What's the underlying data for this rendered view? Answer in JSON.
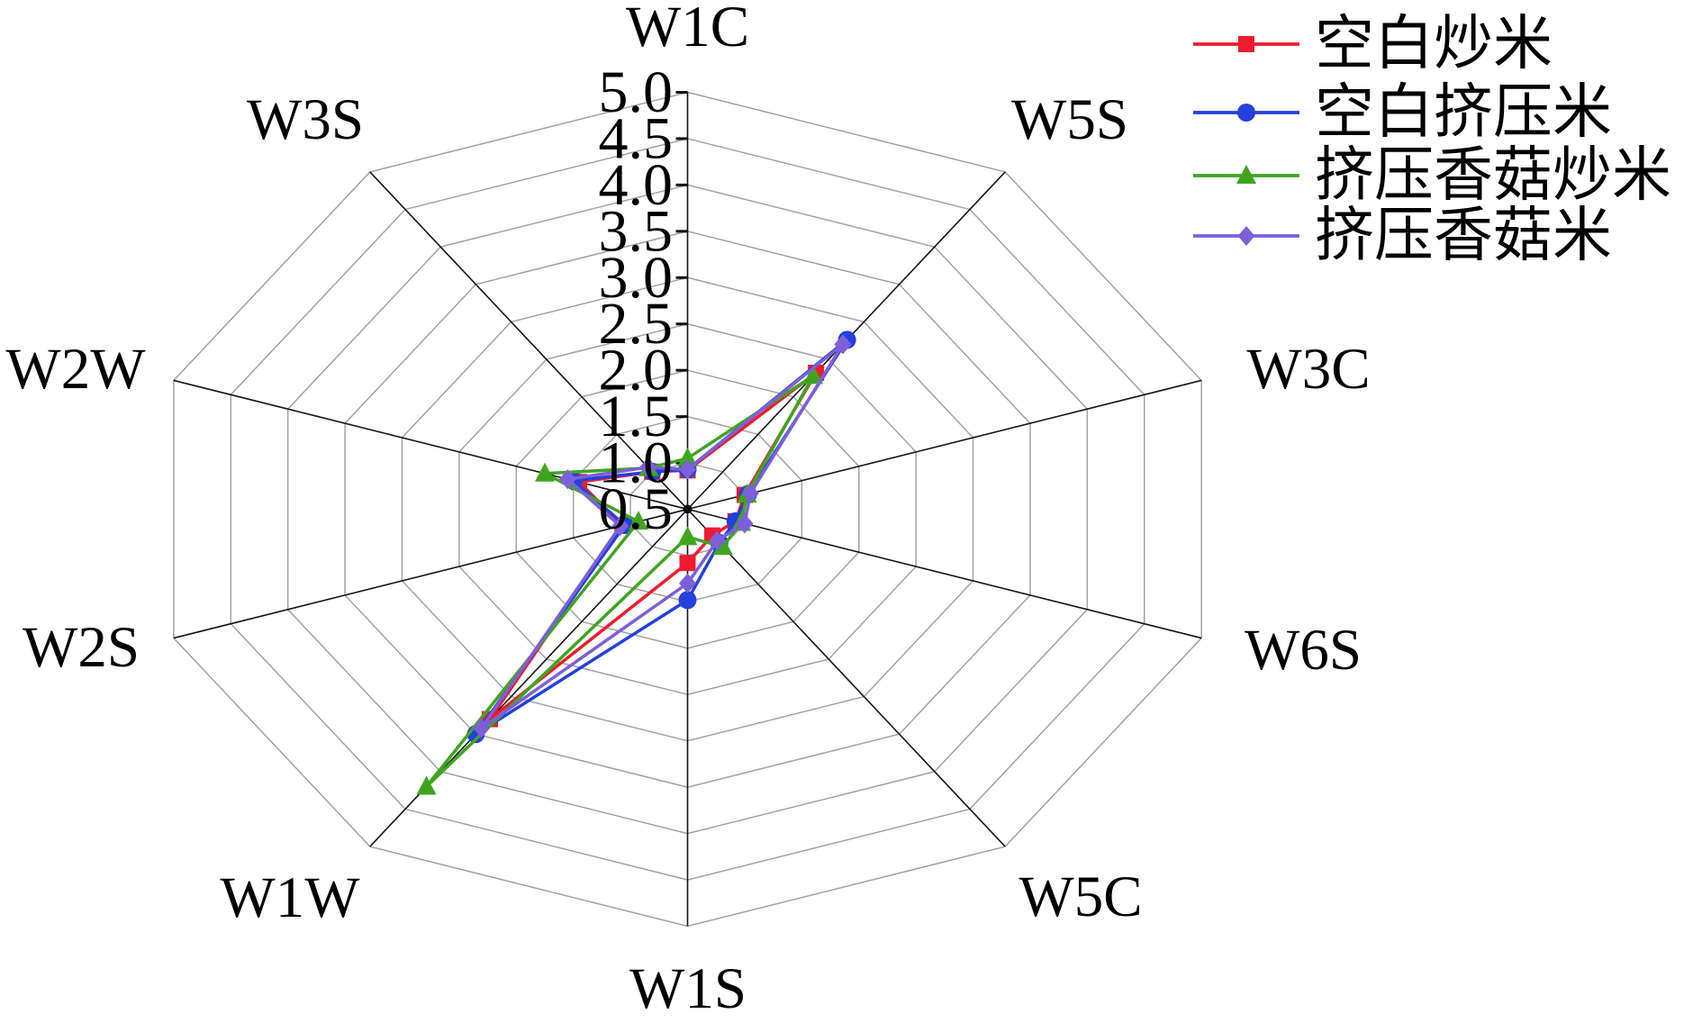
{
  "chart_data": {
    "type": "radar",
    "axes": [
      "W1C",
      "W5S",
      "W3C",
      "W6S",
      "W5C",
      "W1S",
      "W1W",
      "W2S",
      "W2W",
      "W3S"
    ],
    "rmin": 0.5,
    "rmax": 5.0,
    "tick_step": 0.5,
    "tick_labels": [
      "0.5",
      "1.0",
      "1.5",
      "2.0",
      "2.5",
      "3.0",
      "3.5",
      "4.0",
      "4.5",
      "5.0"
    ],
    "grid_color": "#a2a2a2",
    "spoke_color": "#15151f",
    "series": [
      {
        "name": "空白炒米",
        "color": "#ee1c2e",
        "marker": "square",
        "values": [
          0.92,
          2.32,
          1.0,
          0.92,
          0.85,
          1.08,
          3.3,
          1.07,
          1.45,
          1.0
        ]
      },
      {
        "name": "空白挤压米",
        "color": "#2440dd",
        "marker": "circle",
        "values": [
          0.93,
          2.76,
          1.03,
          0.92,
          0.95,
          1.48,
          3.5,
          1.05,
          1.5,
          1.0
        ]
      },
      {
        "name": "挤压香菇炒米",
        "color": "#3fa51f",
        "marker": "triangle",
        "values": [
          1.05,
          2.28,
          1.02,
          0.97,
          1.0,
          0.8,
          4.2,
          0.93,
          1.75,
          1.05
        ]
      },
      {
        "name": "挤压香菇米",
        "color": "#7d5fd9",
        "marker": "diamond",
        "values": [
          0.93,
          2.7,
          1.05,
          1.0,
          0.92,
          1.3,
          3.42,
          1.09,
          1.55,
          1.06
        ]
      }
    ],
    "legend_position": "top-right"
  }
}
